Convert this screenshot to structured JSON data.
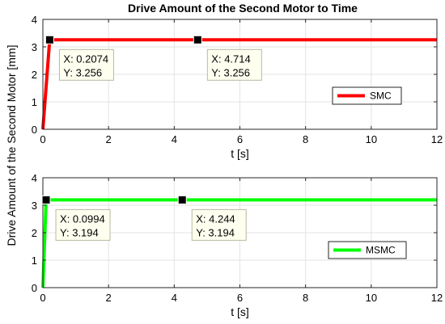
{
  "title": "Drive Amount of the Second Motor to Time",
  "shared_ylabel": "Drive Amount of the Second Motor [mm]",
  "chart_data": [
    {
      "type": "line",
      "xlabel": "t [s]",
      "xlim": [
        0,
        12
      ],
      "ylim": [
        0,
        4
      ],
      "xticks": [
        0,
        2,
        4,
        6,
        8,
        10,
        12
      ],
      "yticks": [
        0,
        1,
        2,
        3,
        4
      ],
      "grid": true,
      "legend_position": "right",
      "series": [
        {
          "name": "SMC",
          "color": "#ff0000",
          "x": [
            0,
            0.2074,
            4.714,
            12
          ],
          "y": [
            0,
            3.256,
            3.256,
            3.256
          ]
        }
      ],
      "datatips": [
        {
          "x": 0.2074,
          "y": 3.256,
          "x_text": "X: 0.2074",
          "y_text": "Y: 3.256"
        },
        {
          "x": 4.714,
          "y": 3.256,
          "x_text": "X: 4.714",
          "y_text": "Y: 3.256"
        }
      ]
    },
    {
      "type": "line",
      "xlabel": "t [s]",
      "xlim": [
        0,
        12
      ],
      "ylim": [
        0,
        4
      ],
      "xticks": [
        0,
        2,
        4,
        6,
        8,
        10,
        12
      ],
      "yticks": [
        0,
        1,
        2,
        3,
        4
      ],
      "grid": true,
      "legend_position": "right",
      "series": [
        {
          "name": "MSMC",
          "color": "#00ff00",
          "x": [
            0,
            0.0994,
            4.244,
            12
          ],
          "y": [
            0,
            3.194,
            3.194,
            3.194
          ]
        }
      ],
      "datatips": [
        {
          "x": 0.0994,
          "y": 3.194,
          "x_text": "X: 0.0994",
          "y_text": "Y: 3.194"
        },
        {
          "x": 4.244,
          "y": 3.194,
          "x_text": "X: 4.244",
          "y_text": "Y: 3.194"
        }
      ]
    }
  ]
}
